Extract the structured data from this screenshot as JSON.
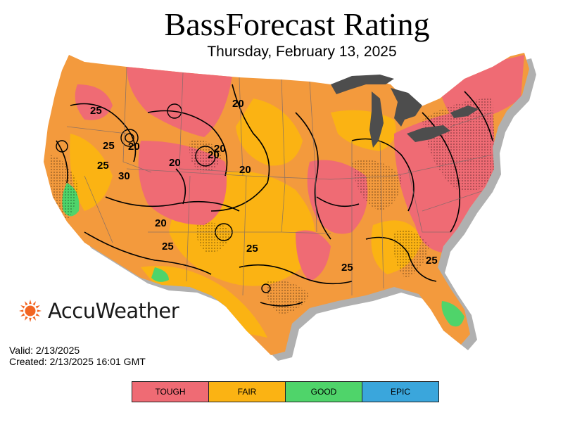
{
  "header": {
    "title": "BassForecast Rating",
    "date": "Thursday, February 13, 2025"
  },
  "brand": {
    "name": "AccuWeather",
    "icon": "sun-icon",
    "color": "#f26522"
  },
  "info": {
    "valid": "Valid: 2/13/2025",
    "created": "Created: 2/13/2025 16:01 GMT"
  },
  "legend": [
    {
      "label": "TOUGH",
      "color": "#ef6b74"
    },
    {
      "label": "FAIR",
      "color": "#fbb313"
    },
    {
      "label": "GOOD",
      "color": "#4fd46a"
    },
    {
      "label": "EPIC",
      "color": "#3aa6dc"
    }
  ],
  "contour_labels": [
    "25",
    "20",
    "20",
    "25",
    "20",
    "30",
    "25",
    "20",
    "20",
    "20",
    "25",
    "25",
    "25",
    "25",
    "20"
  ],
  "colors": {
    "tough": "#ef6b74",
    "fair": "#fbb313",
    "orange": "#f39a3d",
    "good": "#4fd46a",
    "lakes": "#4d4d4d",
    "shadow": "#b0b0b0"
  }
}
